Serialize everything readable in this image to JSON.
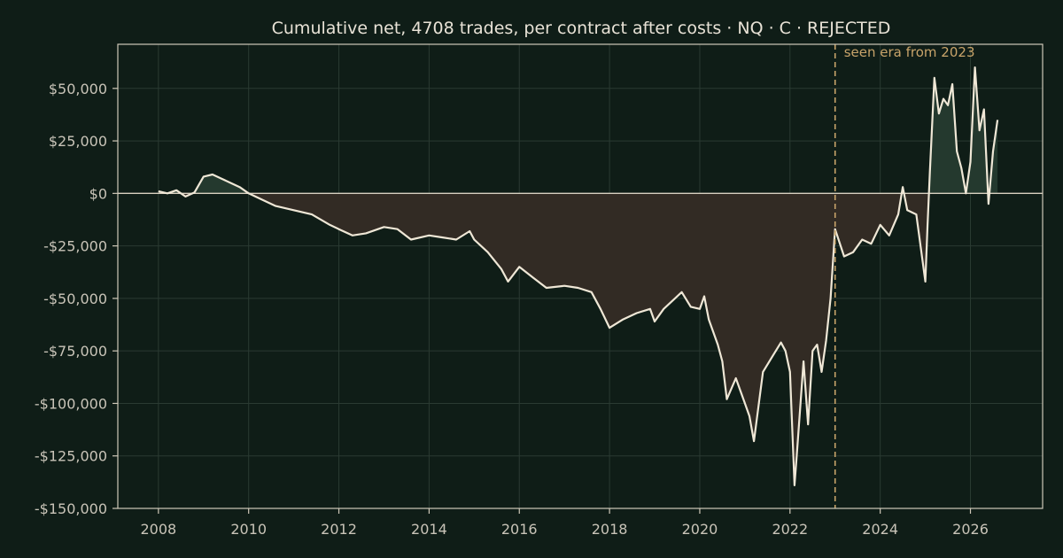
{
  "chart_data": {
    "type": "line",
    "title": "Cumulative net, 4708 trades, per contract after costs  ·  NQ · C · REJECTED",
    "xlabel": "",
    "ylabel": "",
    "xlim": [
      2007.1,
      2027.6
    ],
    "ylim": [
      -150000,
      71000
    ],
    "x_ticks": [
      2008,
      2010,
      2012,
      2014,
      2016,
      2018,
      2020,
      2022,
      2024,
      2026
    ],
    "y_ticks": [
      50000,
      25000,
      0,
      -25000,
      -50000,
      -75000,
      -100000,
      -125000,
      -150000
    ],
    "y_tick_labels": [
      "$50,000",
      "$25,000",
      "$0",
      "-$25,000",
      "-$50,000",
      "-$75,000",
      "-$100,000",
      "-$125,000",
      "-$150,000"
    ],
    "grid": true,
    "fill_colors": {
      "positive": "#24392e",
      "negative": "#322b24"
    },
    "line_color": "#efe7d6",
    "annotation": {
      "x": 2023.0,
      "label": "seen era from 2023",
      "color": "#c8a46a"
    },
    "series": [
      {
        "x": [
          2008.0,
          2008.2,
          2008.4,
          2008.6,
          2008.8,
          2009.0,
          2009.2,
          2009.4,
          2009.6,
          2009.8,
          2010.0,
          2010.3,
          2010.6,
          2011.0,
          2011.4,
          2011.8,
          2012.0,
          2012.3,
          2012.6,
          2013.0,
          2013.3,
          2013.6,
          2014.0,
          2014.3,
          2014.6,
          2014.9,
          2015.0,
          2015.3,
          2015.6,
          2015.75,
          2016.0,
          2016.3,
          2016.6,
          2017.0,
          2017.3,
          2017.6,
          2017.8,
          2018.0,
          2018.3,
          2018.6,
          2018.9,
          2019.0,
          2019.2,
          2019.4,
          2019.6,
          2019.8,
          2020.0,
          2020.1,
          2020.2,
          2020.4,
          2020.5,
          2020.6,
          2020.8,
          2021.0,
          2021.1,
          2021.2,
          2021.4,
          2021.6,
          2021.8,
          2021.9,
          2022.0,
          2022.1,
          2022.15,
          2022.3,
          2022.4,
          2022.5,
          2022.6,
          2022.7,
          2022.8,
          2022.9,
          2023.0,
          2023.2,
          2023.4,
          2023.6,
          2023.8,
          2024.0,
          2024.2,
          2024.4,
          2024.5,
          2024.6,
          2024.8,
          2025.0,
          2025.05,
          2025.1,
          2025.2,
          2025.3,
          2025.4,
          2025.5,
          2025.6,
          2025.7,
          2025.8,
          2025.9,
          2026.0,
          2026.1,
          2026.2,
          2026.3,
          2026.4,
          2026.5,
          2026.6
        ],
        "values": [
          1000,
          0,
          1500,
          -1500,
          500,
          8000,
          9000,
          7000,
          5000,
          3000,
          0,
          -3000,
          -6000,
          -8000,
          -10000,
          -15000,
          -17000,
          -20000,
          -19000,
          -16000,
          -17000,
          -22000,
          -20000,
          -21000,
          -22000,
          -18000,
          -22000,
          -28000,
          -36000,
          -42000,
          -35000,
          -40000,
          -45000,
          -44000,
          -45000,
          -47000,
          -55000,
          -64000,
          -60000,
          -57000,
          -55000,
          -61000,
          -55000,
          -51000,
          -47000,
          -54000,
          -55000,
          -49000,
          -60000,
          -72000,
          -80000,
          -98000,
          -88000,
          -100000,
          -106000,
          -118000,
          -85000,
          -78000,
          -71000,
          -75000,
          -85000,
          -139000,
          -125000,
          -80000,
          -110000,
          -75000,
          -72000,
          -85000,
          -70000,
          -50000,
          -17000,
          -30000,
          -28000,
          -22000,
          -24000,
          -15000,
          -20000,
          -10000,
          3000,
          -8000,
          -10000,
          -42000,
          -15000,
          10000,
          55000,
          38000,
          45000,
          42000,
          52000,
          20000,
          12000,
          0,
          15000,
          60000,
          30000,
          40000,
          -5000,
          20000,
          35000
        ]
      }
    ]
  }
}
